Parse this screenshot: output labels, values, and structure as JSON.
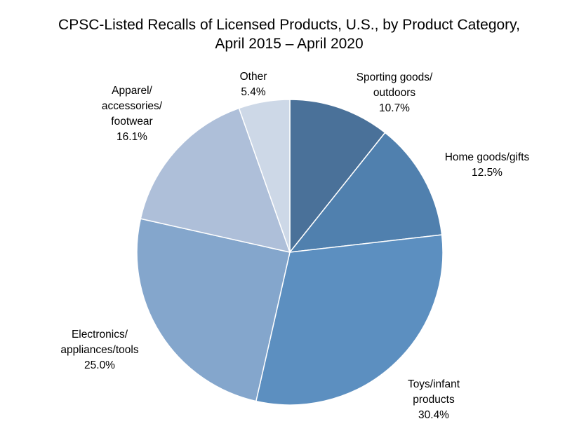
{
  "chart_data": {
    "type": "pie",
    "title": "CPSC-Listed Recalls of Licensed Products, U.S., by Product Category,",
    "subtitle": "April 2015 – April 2020",
    "slices": [
      {
        "label_lines": [
          "Sporting goods/",
          "outdoors"
        ],
        "value": 10.7,
        "value_label": "10.7%",
        "color": "#4a7199"
      },
      {
        "label_lines": [
          "Home goods/gifts"
        ],
        "value": 12.5,
        "value_label": "12.5%",
        "color": "#5080ae"
      },
      {
        "label_lines": [
          "Toys/infant",
          "products"
        ],
        "value": 30.4,
        "value_label": "30.4%",
        "color": "#5c8fc0"
      },
      {
        "label_lines": [
          "Electronics/",
          "appliances/tools"
        ],
        "value": 25.0,
        "value_label": "25.0%",
        "color": "#84a6cc"
      },
      {
        "label_lines": [
          "Apparel/",
          "accessories/",
          "footwear"
        ],
        "value": 16.1,
        "value_label": "16.1%",
        "color": "#aebfd9"
      },
      {
        "label_lines": [
          "Other"
        ],
        "value": 5.4,
        "value_label": "5.4%",
        "color": "#cdd8e7"
      }
    ],
    "start_angle": "12 o'clock",
    "direction": "clockwise",
    "legend": "none"
  }
}
